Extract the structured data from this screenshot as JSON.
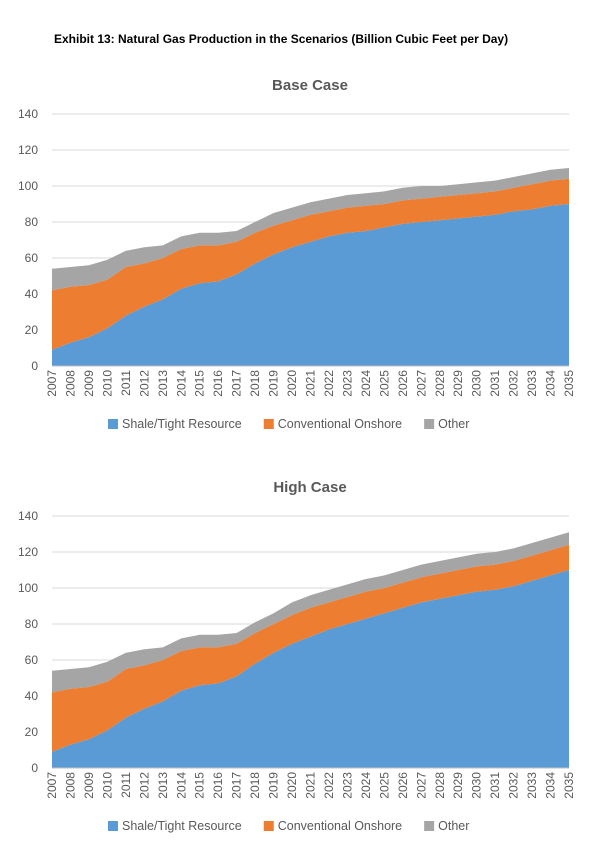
{
  "exhibit_title": "Exhibit 13: Natural Gas Production in the Scenarios (Billion Cubic Feet per Day)",
  "colors": {
    "shale": "#5B9BD5",
    "conventional": "#ED7D31",
    "other": "#A5A5A5"
  },
  "chart_data": [
    {
      "type": "area",
      "stacked": true,
      "title": "Base Case",
      "xlabel": "",
      "ylabel": "",
      "ylim": [
        0,
        140
      ],
      "yticks": [
        0,
        20,
        40,
        60,
        80,
        100,
        120,
        140
      ],
      "legend_position": "bottom",
      "categories": [
        "2007",
        "2008",
        "2009",
        "2010",
        "2011",
        "2012",
        "2013",
        "2014",
        "2015",
        "2016",
        "2017",
        "2018",
        "2019",
        "2020",
        "2021",
        "2022",
        "2023",
        "2024",
        "2025",
        "2026",
        "2027",
        "2028",
        "2029",
        "2030",
        "2031",
        "2032",
        "2033",
        "2034",
        "2035"
      ],
      "series": [
        {
          "name": "Shale/Tight Resource",
          "color_key": "shale",
          "values": [
            9,
            13,
            16,
            21,
            28,
            33,
            37,
            43,
            46,
            47,
            51,
            57,
            62,
            66,
            69,
            72,
            74,
            75,
            77,
            79,
            80,
            81,
            82,
            83,
            84,
            86,
            87,
            89,
            90
          ]
        },
        {
          "name": "Conventional Onshore",
          "color_key": "conventional",
          "values": [
            33,
            31,
            29,
            27,
            27,
            24,
            23,
            22,
            21,
            20,
            18,
            17,
            16,
            15,
            15,
            14,
            14,
            14,
            13,
            13,
            13,
            13,
            13,
            13,
            13,
            13,
            14,
            14,
            14
          ]
        },
        {
          "name": "Other",
          "color_key": "other",
          "values": [
            12,
            11,
            11,
            11,
            9,
            9,
            7,
            7,
            7,
            7,
            6,
            6,
            7,
            7,
            7,
            7,
            7,
            7,
            7,
            7,
            7,
            6,
            6,
            6,
            6,
            6,
            6,
            6,
            6
          ]
        }
      ]
    },
    {
      "type": "area",
      "stacked": true,
      "title": "High Case",
      "xlabel": "",
      "ylabel": "",
      "ylim": [
        0,
        140
      ],
      "yticks": [
        0,
        20,
        40,
        60,
        80,
        100,
        120,
        140
      ],
      "legend_position": "bottom",
      "categories": [
        "2007",
        "2008",
        "2009",
        "2010",
        "2011",
        "2012",
        "2013",
        "2014",
        "2015",
        "2016",
        "2017",
        "2018",
        "2019",
        "2020",
        "2021",
        "2022",
        "2023",
        "2024",
        "2025",
        "2026",
        "2027",
        "2028",
        "2029",
        "2030",
        "2031",
        "2032",
        "2033",
        "2034",
        "2035"
      ],
      "series": [
        {
          "name": "Shale/Tight Resource",
          "color_key": "shale",
          "values": [
            9,
            13,
            16,
            21,
            28,
            33,
            37,
            43,
            46,
            47,
            51,
            58,
            64,
            69,
            73,
            77,
            80,
            83,
            86,
            89,
            92,
            94,
            96,
            98,
            99,
            101,
            104,
            107,
            110
          ]
        },
        {
          "name": "Conventional Onshore",
          "color_key": "conventional",
          "values": [
            33,
            31,
            29,
            27,
            27,
            24,
            23,
            22,
            21,
            20,
            18,
            17,
            16,
            16,
            16,
            15,
            15,
            15,
            14,
            14,
            14,
            14,
            14,
            14,
            14,
            14,
            14,
            14,
            14
          ]
        },
        {
          "name": "Other",
          "color_key": "other",
          "values": [
            12,
            11,
            11,
            11,
            9,
            9,
            7,
            7,
            7,
            7,
            6,
            6,
            6,
            7,
            7,
            7,
            7,
            7,
            7,
            7,
            7,
            7,
            7,
            7,
            7,
            7,
            7,
            7,
            7
          ]
        }
      ]
    }
  ]
}
